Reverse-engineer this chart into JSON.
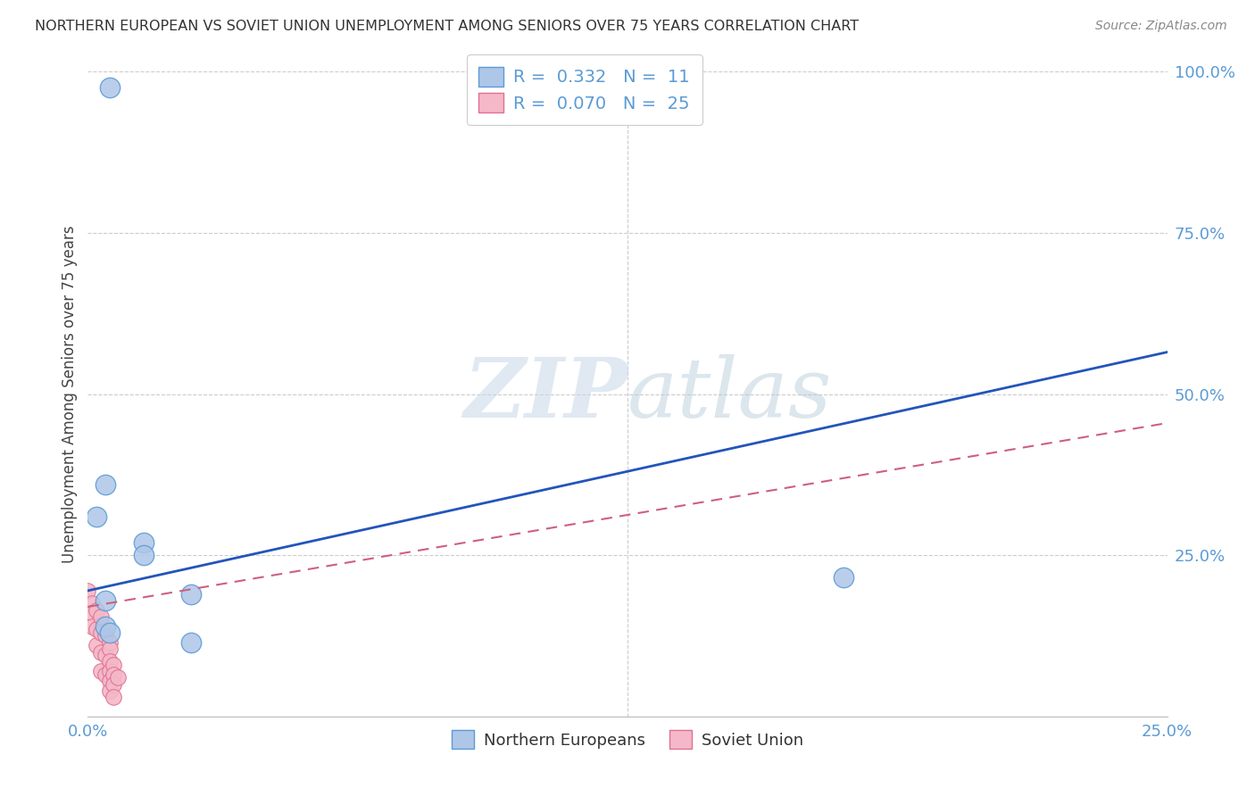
{
  "title": "NORTHERN EUROPEAN VS SOVIET UNION UNEMPLOYMENT AMONG SENIORS OVER 75 YEARS CORRELATION CHART",
  "source": "Source: ZipAtlas.com",
  "ylabel": "Unemployment Among Seniors over 75 years",
  "xlim": [
    0.0,
    0.25
  ],
  "ylim": [
    0.0,
    1.0
  ],
  "xticks": [
    0.0,
    0.05,
    0.1,
    0.15,
    0.2,
    0.25
  ],
  "xtick_labels": [
    "0.0%",
    "",
    "",
    "",
    "",
    "25.0%"
  ],
  "yticks": [
    0.0,
    0.25,
    0.5,
    0.75,
    1.0
  ],
  "ytick_labels": [
    "",
    "25.0%",
    "50.0%",
    "75.0%",
    "100.0%"
  ],
  "northern_europeans": {
    "x": [
      0.002,
      0.004,
      0.013,
      0.013,
      0.024,
      0.024,
      0.004,
      0.175,
      0.004,
      0.005,
      0.005
    ],
    "y": [
      0.31,
      0.36,
      0.27,
      0.25,
      0.19,
      0.115,
      0.18,
      0.215,
      0.14,
      0.975,
      0.13
    ],
    "color": "#aec6e8",
    "edge_color": "#5b9bd5",
    "R": 0.332,
    "N": 11
  },
  "soviet_union": {
    "x": [
      0.0,
      0.001,
      0.001,
      0.001,
      0.002,
      0.002,
      0.002,
      0.003,
      0.003,
      0.003,
      0.003,
      0.004,
      0.004,
      0.004,
      0.005,
      0.005,
      0.005,
      0.005,
      0.005,
      0.005,
      0.006,
      0.006,
      0.006,
      0.006,
      0.007
    ],
    "y": [
      0.195,
      0.175,
      0.16,
      0.14,
      0.165,
      0.135,
      0.11,
      0.155,
      0.13,
      0.1,
      0.07,
      0.125,
      0.095,
      0.065,
      0.115,
      0.105,
      0.085,
      0.07,
      0.055,
      0.04,
      0.08,
      0.065,
      0.05,
      0.03,
      0.06
    ],
    "color": "#f4b8c8",
    "edge_color": "#e07090",
    "R": 0.07,
    "N": 25
  },
  "blue_line": {
    "x": [
      0.0,
      0.25
    ],
    "y": [
      0.195,
      0.565
    ]
  },
  "pink_line": {
    "x": [
      0.0,
      0.25
    ],
    "y": [
      0.17,
      0.455
    ]
  },
  "background_color": "#ffffff",
  "title_color": "#333333",
  "axis_color": "#5b9bd5",
  "grid_color": "#cccccc",
  "watermark_zip": "ZIP",
  "watermark_atlas": "atlas",
  "legend_color": "#5b9bd5"
}
